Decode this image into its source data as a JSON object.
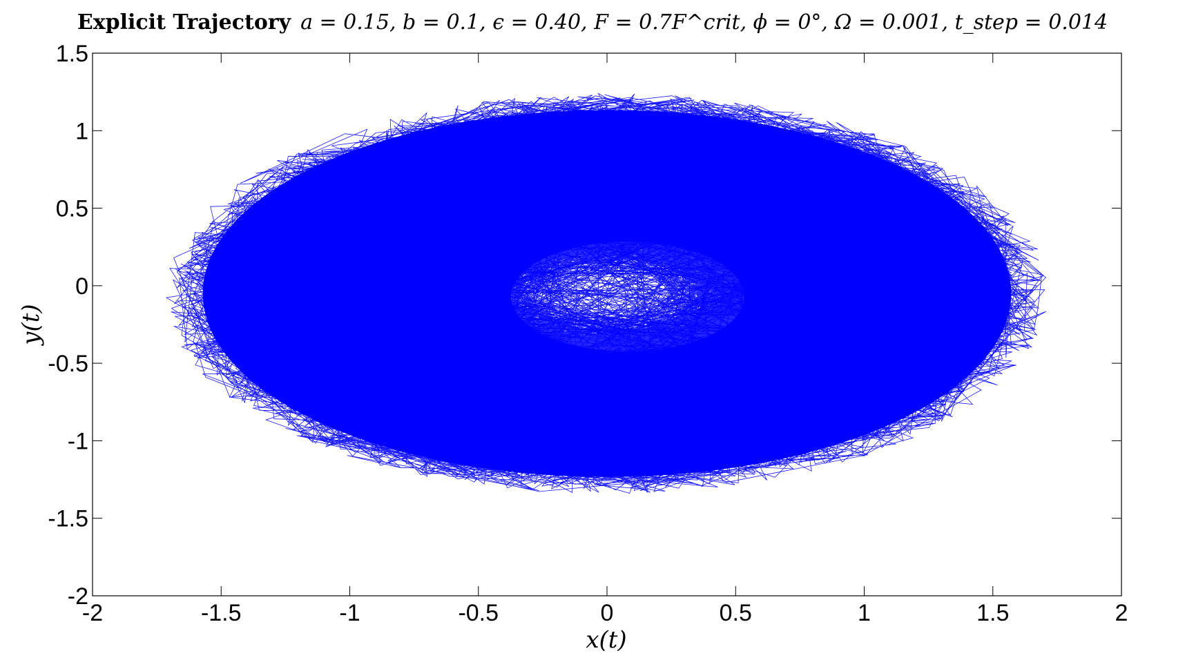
{
  "chart_data": {
    "type": "line",
    "title_bold": "Explicit Trajectory",
    "title_params": "a = 0.15, b = 0.1, ϵ = 0.40, F = 0.7F^crit, ϕ = 0°, Ω = 0.001, t_step = 0.014",
    "xlabel": "x(t)",
    "ylabel": "y(t)",
    "xlim": [
      -2,
      2
    ],
    "ylim": [
      -2,
      1.5
    ],
    "xticks": [
      "-2",
      "-1.5",
      "-1",
      "-0.5",
      "0",
      "0.5",
      "1",
      "1.5",
      "2"
    ],
    "yticks": [
      "-2",
      "-1.5",
      "-1",
      "-0.5",
      "0",
      "0.5",
      "1",
      "1.5"
    ],
    "grid": false,
    "series": [
      {
        "color": "#0000ff",
        "description_shape": "dense noisy elliptical trajectory filling region roughly x∈[-1.8,1.75], y∈[-1.5,1.4], sparser inner core around (0.05,-0.05)",
        "extent": {
          "x_min": -1.8,
          "x_max": 1.75,
          "y_min": -1.55,
          "y_max": 1.45
        },
        "center": [
          0.0,
          -0.05
        ],
        "semi_axes": [
          1.62,
          1.22
        ]
      }
    ]
  }
}
